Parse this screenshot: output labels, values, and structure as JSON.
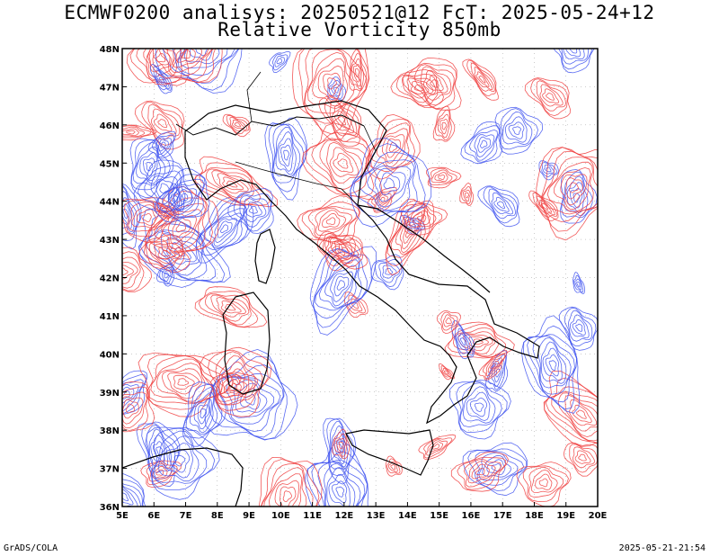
{
  "header": {
    "title_line1": "ECMWF0200 analisys: 20250521@12 FcT: 2025-05-24+12",
    "title_line2": "Relative Vorticity 850mb"
  },
  "map": {
    "lon_range": [
      5,
      20
    ],
    "lat_range": [
      36,
      48
    ],
    "lon_ticks": [
      "5E",
      "6E",
      "7E",
      "8E",
      "9E",
      "10E",
      "11E",
      "12E",
      "13E",
      "14E",
      "15E",
      "16E",
      "17E",
      "18E",
      "19E",
      "20E"
    ],
    "lat_ticks": [
      "36N",
      "37N",
      "38N",
      "39N",
      "40N",
      "41N",
      "42N",
      "43N",
      "44N",
      "45N",
      "46N",
      "47N",
      "48N"
    ],
    "colors": {
      "positive_vorticity": "#f03c3c",
      "negative_vorticity": "#3c50f0",
      "coastline": "#000000",
      "background": "#ffffff"
    }
  },
  "footer": {
    "left": "GrADS/COLA",
    "right": "2025-05-21-21:54"
  }
}
